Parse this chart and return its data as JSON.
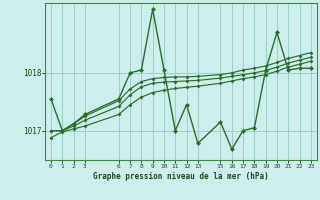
{
  "title": "Graphe pression niveau de la mer (hPa)",
  "bg_color": "#ceeeed",
  "grid_color": "#9ecece",
  "line_color": "#2a6e2a",
  "xlim": [
    -0.5,
    23.5
  ],
  "ylim": [
    1016.5,
    1019.2
  ],
  "yticks": [
    1017,
    1018
  ],
  "xticks": [
    0,
    1,
    2,
    3,
    6,
    7,
    8,
    9,
    10,
    11,
    12,
    13,
    15,
    16,
    17,
    18,
    19,
    20,
    21,
    22,
    23
  ],
  "hours": [
    0,
    1,
    2,
    3,
    6,
    7,
    8,
    9,
    10,
    11,
    12,
    13,
    15,
    16,
    17,
    18,
    19,
    20,
    21,
    22,
    23
  ],
  "line1": [
    1017.55,
    1017.0,
    1017.12,
    1017.28,
    1017.55,
    1018.0,
    1018.05,
    1019.1,
    1018.05,
    1017.0,
    1017.45,
    1016.78,
    1017.15,
    1016.68,
    1017.0,
    1017.05,
    1018.05,
    1018.7,
    1018.05,
    1018.08,
    1018.08
  ],
  "line2": [
    1017.0,
    1017.0,
    1017.12,
    1017.25,
    1017.52,
    1017.72,
    1017.85,
    1017.9,
    1017.92,
    1017.93,
    1017.93,
    1017.94,
    1017.97,
    1018.0,
    1018.05,
    1018.08,
    1018.12,
    1018.18,
    1018.25,
    1018.3,
    1018.35
  ],
  "line3": [
    1017.0,
    1017.0,
    1017.08,
    1017.18,
    1017.42,
    1017.62,
    1017.76,
    1017.82,
    1017.84,
    1017.85,
    1017.86,
    1017.87,
    1017.91,
    1017.94,
    1017.97,
    1018.0,
    1018.04,
    1018.1,
    1018.17,
    1018.22,
    1018.27
  ],
  "line4": [
    1016.88,
    1016.98,
    1017.03,
    1017.08,
    1017.28,
    1017.45,
    1017.58,
    1017.66,
    1017.7,
    1017.73,
    1017.75,
    1017.77,
    1017.82,
    1017.86,
    1017.9,
    1017.93,
    1017.97,
    1018.03,
    1018.1,
    1018.15,
    1018.2
  ]
}
